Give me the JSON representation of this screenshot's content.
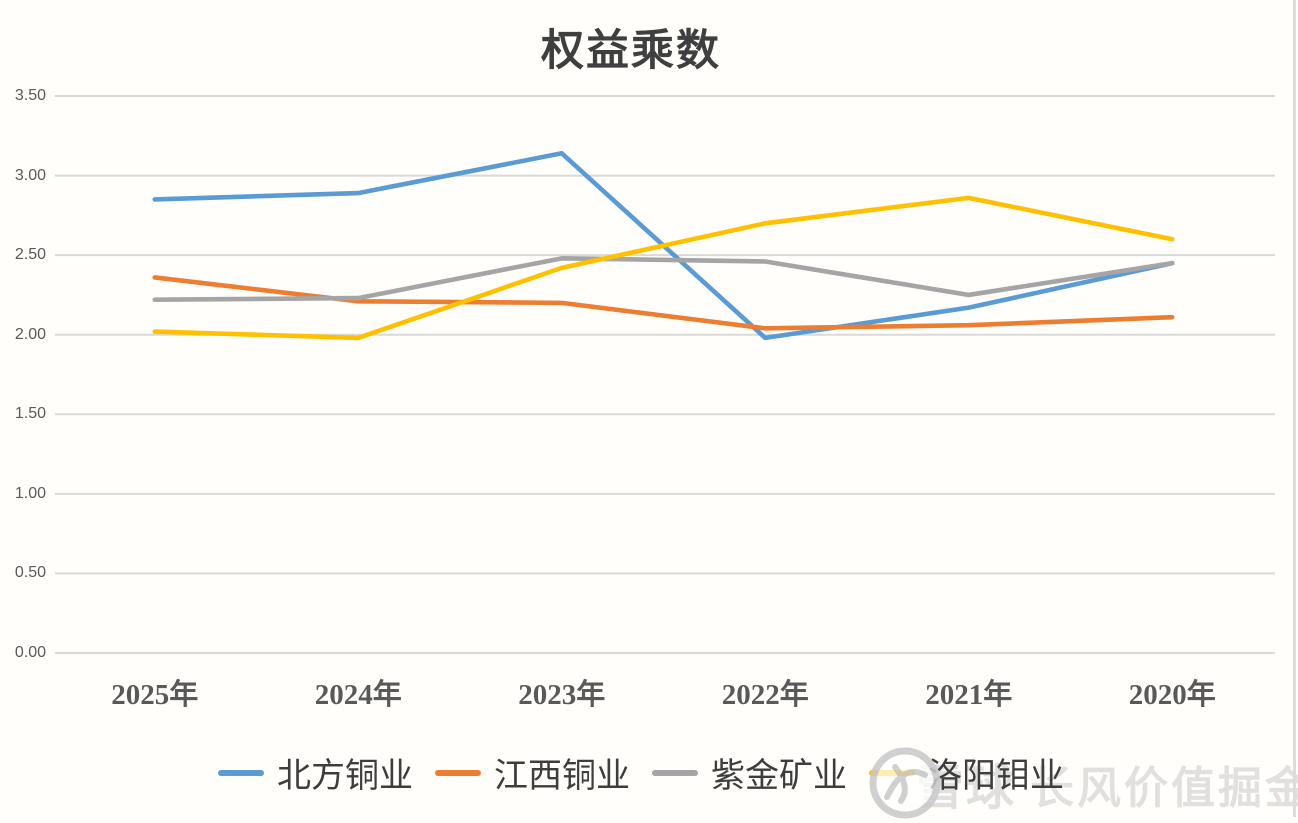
{
  "chart": {
    "watermark": {
      "brand": "雪球",
      "slogan": "长风价值掘金",
      "logo": "xueqiu-snowball-logo"
    },
    "grid_color": "#d9d9d9",
    "axis_label_color": "#595959",
    "title_color": "#3f3f3f"
  },
  "chart_data": {
    "type": "line",
    "title": "权益乘数",
    "categories": [
      "2025年",
      "2024年",
      "2023年",
      "2022年",
      "2021年",
      "2020年"
    ],
    "series": [
      {
        "name": "北方铜业",
        "color": "#5B9BD5",
        "values": [
          2.85,
          2.89,
          3.14,
          1.98,
          2.17,
          2.45
        ]
      },
      {
        "name": "江西铜业",
        "color": "#ED7D31",
        "values": [
          2.36,
          2.21,
          2.2,
          2.04,
          2.06,
          2.11
        ]
      },
      {
        "name": "紫金矿业",
        "color": "#A5A5A5",
        "values": [
          2.22,
          2.23,
          2.48,
          2.46,
          2.25,
          2.45
        ]
      },
      {
        "name": "洛阳钼业",
        "color": "#FFC000",
        "values": [
          2.02,
          1.98,
          2.42,
          2.7,
          2.86,
          2.6
        ]
      }
    ],
    "ylim": [
      0,
      3.5
    ],
    "ytick_step": 0.5,
    "ytick_labels": [
      "0.00",
      "0.50",
      "1.00",
      "1.50",
      "2.00",
      "2.50",
      "3.00",
      "3.50"
    ],
    "xlabel": "",
    "ylabel": "",
    "grid": true,
    "legend_position": "bottom"
  }
}
